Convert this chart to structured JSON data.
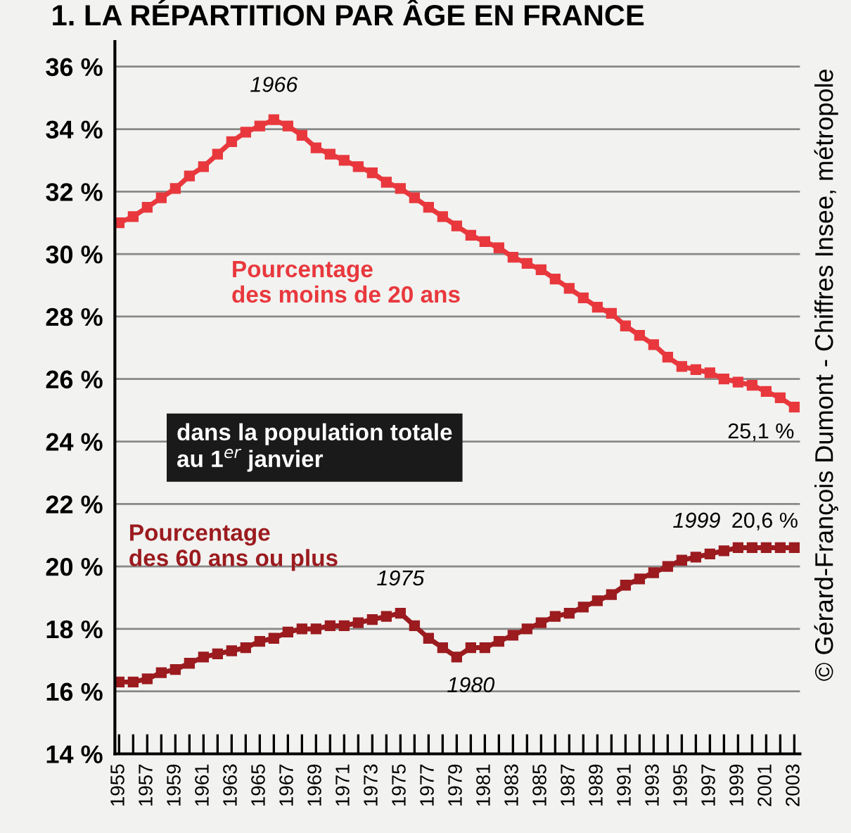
{
  "chart_data": {
    "type": "line",
    "title": "1. LA RÉPARTITION PAR ÂGE EN FRANCE",
    "x": [
      1955,
      1956,
      1957,
      1958,
      1959,
      1960,
      1961,
      1962,
      1963,
      1964,
      1965,
      1966,
      1967,
      1968,
      1969,
      1970,
      1971,
      1972,
      1973,
      1974,
      1975,
      1976,
      1977,
      1978,
      1979,
      1980,
      1981,
      1982,
      1983,
      1984,
      1985,
      1986,
      1987,
      1988,
      1989,
      1990,
      1991,
      1992,
      1993,
      1994,
      1995,
      1996,
      1997,
      1998,
      1999,
      2000,
      2001,
      2002,
      2003
    ],
    "series": [
      {
        "name": "Pourcentage\ndes moins de 20 ans",
        "color": "#e8383d",
        "values": [
          31.0,
          31.2,
          31.5,
          31.8,
          32.1,
          32.5,
          32.8,
          33.2,
          33.6,
          33.9,
          34.1,
          34.3,
          34.1,
          33.8,
          33.4,
          33.2,
          33.0,
          32.8,
          32.6,
          32.3,
          32.1,
          31.8,
          31.5,
          31.2,
          30.9,
          30.6,
          30.4,
          30.2,
          29.9,
          29.7,
          29.5,
          29.2,
          28.9,
          28.6,
          28.3,
          28.1,
          27.7,
          27.4,
          27.1,
          26.7,
          26.4,
          26.3,
          26.2,
          26.0,
          25.9,
          25.8,
          25.6,
          25.4,
          25.1
        ]
      },
      {
        "name": "Pourcentage\ndes 60 ans ou plus",
        "color": "#9b1b1f",
        "values": [
          16.3,
          16.3,
          16.4,
          16.6,
          16.7,
          16.9,
          17.1,
          17.2,
          17.3,
          17.4,
          17.6,
          17.7,
          17.9,
          18.0,
          18.0,
          18.1,
          18.1,
          18.2,
          18.3,
          18.4,
          18.5,
          18.1,
          17.7,
          17.4,
          17.1,
          17.4,
          17.4,
          17.6,
          17.8,
          18.0,
          18.2,
          18.4,
          18.5,
          18.7,
          18.9,
          19.1,
          19.4,
          19.6,
          19.8,
          20.0,
          20.2,
          20.3,
          20.4,
          20.5,
          20.6,
          20.6,
          20.6,
          20.6,
          20.6
        ]
      }
    ],
    "marker": "square",
    "grid": "y",
    "legend": false,
    "ylim": [
      14,
      36.8
    ],
    "yticks": [
      {
        "value": 14,
        "label": "14 %"
      },
      {
        "value": 16,
        "label": "16 %"
      },
      {
        "value": 18,
        "label": "18 %"
      },
      {
        "value": 20,
        "label": "20 %"
      },
      {
        "value": 22,
        "label": "22 %"
      },
      {
        "value": 24,
        "label": "24 %"
      },
      {
        "value": 26,
        "label": "26 %"
      },
      {
        "value": 28,
        "label": "28 %"
      },
      {
        "value": 30,
        "label": "30 %"
      },
      {
        "value": 32,
        "label": "32 %"
      },
      {
        "value": 34,
        "label": "34 %"
      },
      {
        "value": 36,
        "label": "36 %"
      }
    ],
    "xlim": [
      1954.7,
      2003.4
    ],
    "xticks": [
      1955,
      {
        "value": 1956,
        "label": null
      },
      1957,
      {
        "value": 1958,
        "label": null
      },
      1959,
      {
        "value": 1960,
        "label": null
      },
      1961,
      {
        "value": 1962,
        "label": null
      },
      1963,
      {
        "value": 1964,
        "label": null
      },
      1965,
      {
        "value": 1966,
        "label": null
      },
      1967,
      {
        "value": 1968,
        "label": null
      },
      1969,
      {
        "value": 1970,
        "label": null
      },
      1971,
      {
        "value": 1972,
        "label": null
      },
      1973,
      {
        "value": 1974,
        "label": null
      },
      1975,
      {
        "value": 1976,
        "label": null
      },
      1977,
      {
        "value": 1978,
        "label": null
      },
      1979,
      {
        "value": 1980,
        "label": null
      },
      1981,
      {
        "value": 1982,
        "label": null
      },
      1983,
      {
        "value": 1984,
        "label": null
      },
      1985,
      {
        "value": 1986,
        "label": null
      },
      1987,
      {
        "value": 1988,
        "label": null
      },
      1989,
      {
        "value": 1990,
        "label": null
      },
      1991,
      {
        "value": 1992,
        "label": null
      },
      1993,
      {
        "value": 1994,
        "label": null
      },
      1995,
      {
        "value": 1996,
        "label": null
      },
      1997,
      {
        "value": 1998,
        "label": null
      },
      1999,
      {
        "value": 2000,
        "label": null
      },
      2001,
      {
        "value": 2002,
        "label": null
      },
      2003
    ],
    "annotations": [
      {
        "text": "1966",
        "x": 1966,
        "y": 34.3
      },
      {
        "text": "25,1 %",
        "x": 2003,
        "y": 25.1
      },
      {
        "text": "1975",
        "x": 1975,
        "y": 18.5
      },
      {
        "text": "1980",
        "x": 1980,
        "y": 17.1
      },
      {
        "text": "1999",
        "x": 1999,
        "y": 20.6
      },
      {
        "text": "20,6 %",
        "x": 2003,
        "y": 20.6
      },
      "dans la population totale\nau 1$^{er}$ janvier",
      "© Gérard-François Dumont - Chiffres Insee, métropole"
    ]
  }
}
